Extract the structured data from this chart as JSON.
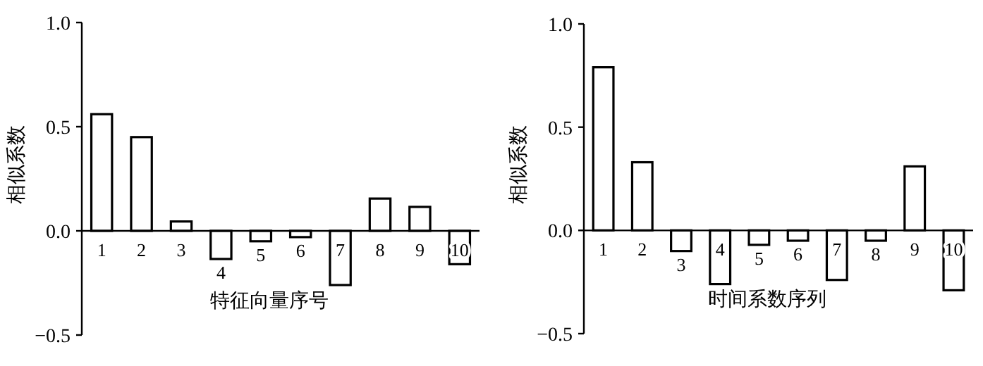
{
  "chart_data": [
    {
      "type": "bar",
      "ylabel": "相似系数",
      "xlabel": "特征向量序号",
      "categories": [
        "1",
        "2",
        "3",
        "4",
        "5",
        "6",
        "7",
        "8",
        "9",
        "10"
      ],
      "series": [
        {
          "color": "#ffffff",
          "values": [
            0.56,
            0.45,
            0.045,
            -0.135,
            -0.05,
            -0.03,
            -0.26,
            0.155,
            0.115,
            -0.16
          ]
        }
      ],
      "ylim": [
        -0.5,
        1.0
      ],
      "yticks": [
        {
          "value": -0.5,
          "label": "−0.5"
        },
        {
          "value": 0,
          "label": "0.0"
        },
        0.5,
        {
          "value": 1.0,
          "label": "1.0"
        }
      ],
      "grid": false
    },
    {
      "type": "bar",
      "ylabel": "相似系数",
      "xlabel": "时间系数序列",
      "categories": [
        "1",
        "2",
        "3",
        "4",
        "5",
        "6",
        "7",
        "8",
        "9",
        "10"
      ],
      "series": [
        {
          "color": "#ffffff",
          "values": [
            0.79,
            0.33,
            -0.1,
            -0.26,
            -0.07,
            -0.05,
            -0.24,
            -0.05,
            0.31,
            -0.29
          ]
        }
      ],
      "ylim": [
        -0.5,
        1.0
      ],
      "yticks": [
        {
          "value": -0.5,
          "label": "−0.5"
        },
        {
          "value": 0,
          "label": "0.0"
        },
        0.5,
        {
          "value": 1.0,
          "label": "1.0"
        }
      ],
      "grid": false
    }
  ]
}
